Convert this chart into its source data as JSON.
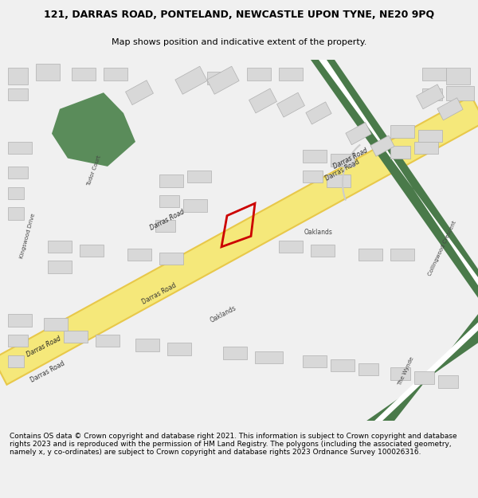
{
  "title": "121, DARRAS ROAD, PONTELAND, NEWCASTLE UPON TYNE, NE20 9PQ",
  "subtitle": "Map shows position and indicative extent of the property.",
  "footer": "Contains OS data © Crown copyright and database right 2021. This information is subject to Crown copyright and database rights 2023 and is reproduced with the permission of HM Land Registry. The polygons (including the associated geometry, namely x, y co-ordinates) are subject to Crown copyright and database rights 2023 Ordnance Survey 100026316.",
  "bg_color": "#f8f8f8",
  "map_bg": "#ffffff",
  "road_yellow": "#f5e87a",
  "road_border": "#e8c84a",
  "green_area": "#5a8c5a",
  "green_road": "#4a7a4a",
  "building_color": "#d8d8d8",
  "building_edge": "#b0b0b0",
  "red_plot": "#cc0000",
  "title_fontsize": 9,
  "subtitle_fontsize": 8,
  "footer_fontsize": 6.5
}
